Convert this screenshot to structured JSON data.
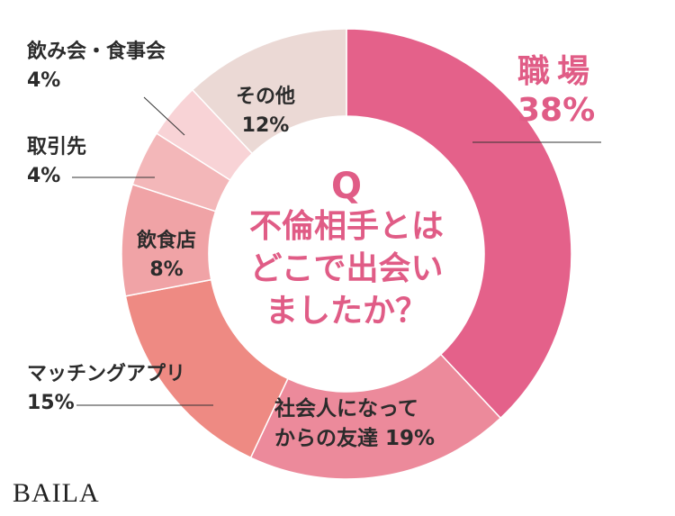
{
  "chart_data": {
    "type": "donut",
    "question_mark": "Q",
    "title": "不倫相手とはどこで出会いましたか？",
    "categories": [
      "職場",
      "社会人になってからの友達",
      "マッチングアプリ",
      "飲食店",
      "取引先",
      "飲み会・食事会",
      "その他"
    ],
    "values": [
      38,
      19,
      15,
      8,
      4,
      4,
      12
    ],
    "value_labels": [
      "38%",
      "19%",
      "15%",
      "8%",
      "4%",
      "4%",
      "12%"
    ],
    "colors": [
      "#e4618a",
      "#ec8a9b",
      "#ee8a83",
      "#f0a3a6",
      "#f3b7b9",
      "#f8d3d6",
      "#ebd9d5"
    ],
    "brand": "BAILA"
  }
}
